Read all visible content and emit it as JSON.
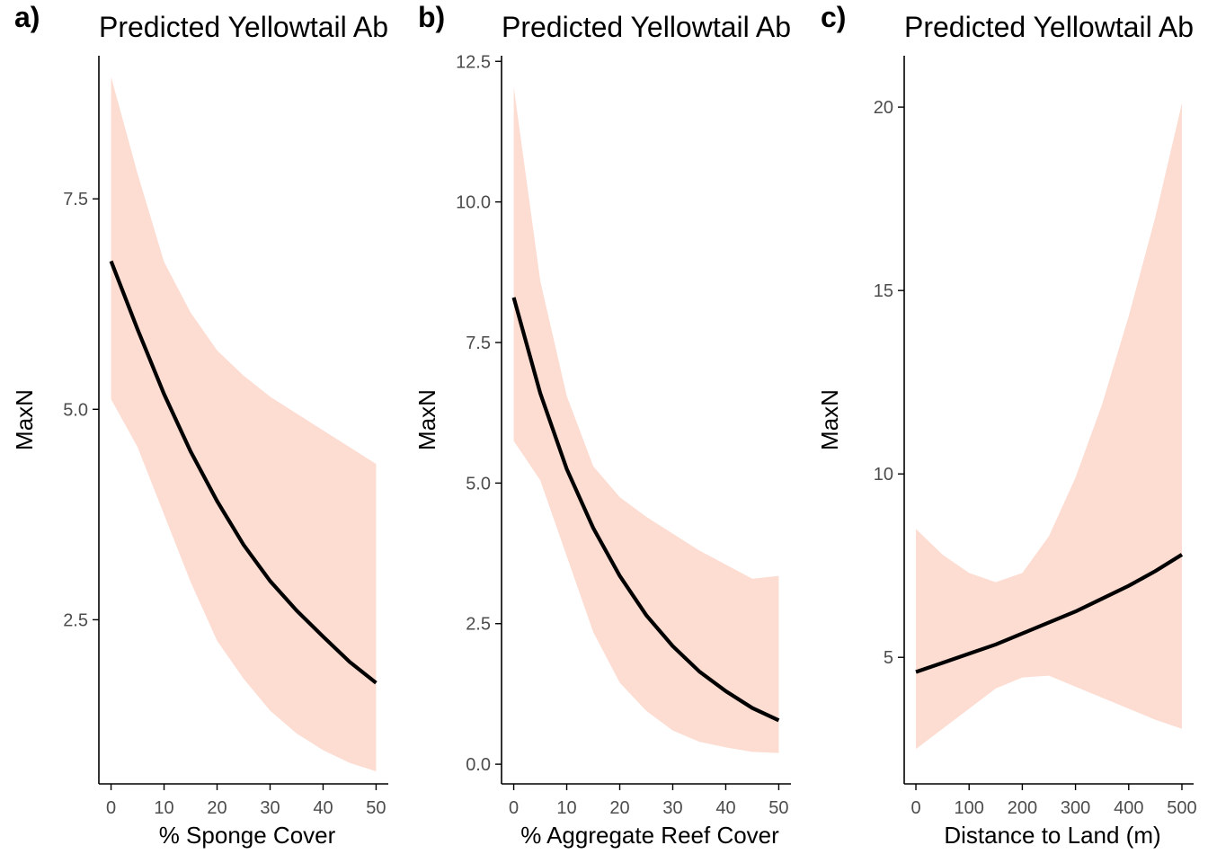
{
  "colors": {
    "ribbon": "#fddcd2",
    "line": "#000000",
    "axis": "#000000",
    "tick_text": "#4d4d4d"
  },
  "chart_data": [
    {
      "type": "line",
      "tag": "a)",
      "title": "Predicted Yellowtail Ab",
      "xlabel": "% Sponge Cover",
      "ylabel": "MaxN",
      "xlim": [
        -2.3,
        52.3
      ],
      "ylim": [
        0.55,
        9.2
      ],
      "x_ticks": [
        0,
        10,
        20,
        30,
        40,
        50
      ],
      "x_tick_labels": [
        "0",
        "10",
        "20",
        "30",
        "40",
        "50"
      ],
      "y_ticks": [
        2.5,
        5.0,
        7.5
      ],
      "y_tick_labels": [
        "2.5",
        "5.0",
        "7.5"
      ],
      "series": [
        {
          "x": [
            0,
            5,
            10,
            15,
            20,
            25,
            30,
            35,
            40,
            45,
            50
          ],
          "y": [
            6.76,
            5.95,
            5.18,
            4.5,
            3.91,
            3.39,
            2.96,
            2.61,
            2.3,
            2.0,
            1.75
          ],
          "lower": [
            5.12,
            4.55,
            3.75,
            2.95,
            2.25,
            1.8,
            1.42,
            1.15,
            0.95,
            0.8,
            0.7
          ],
          "upper": [
            8.95,
            7.8,
            6.75,
            6.15,
            5.7,
            5.4,
            5.15,
            4.95,
            4.75,
            4.55,
            4.35
          ]
        }
      ]
    },
    {
      "type": "line",
      "tag": "b)",
      "title": "Predicted Yellowtail Ab",
      "xlabel": "% Aggregate Reef Cover",
      "ylabel": "MaxN",
      "xlim": [
        -2.3,
        52.3
      ],
      "ylim": [
        -0.35,
        12.6
      ],
      "x_ticks": [
        0,
        10,
        20,
        30,
        40,
        50
      ],
      "x_tick_labels": [
        "0",
        "10",
        "20",
        "30",
        "40",
        "50"
      ],
      "y_ticks": [
        0.0,
        2.5,
        5.0,
        7.5,
        10.0,
        12.5
      ],
      "y_tick_labels": [
        "0.0",
        "2.5",
        "5.0",
        "7.5",
        "10.0",
        "12.5"
      ],
      "series": [
        {
          "x": [
            0,
            5,
            10,
            15,
            20,
            25,
            30,
            35,
            40,
            45,
            50
          ],
          "y": [
            8.3,
            6.6,
            5.25,
            4.2,
            3.35,
            2.65,
            2.1,
            1.65,
            1.3,
            1.0,
            0.78
          ],
          "lower": [
            5.75,
            5.05,
            3.7,
            2.35,
            1.45,
            0.95,
            0.6,
            0.4,
            0.3,
            0.22,
            0.2
          ],
          "upper": [
            12.05,
            8.6,
            6.55,
            5.3,
            4.75,
            4.4,
            4.1,
            3.8,
            3.55,
            3.3,
            3.35
          ]
        }
      ]
    },
    {
      "type": "line",
      "tag": "c)",
      "title": "Predicted Yellowtail Ab",
      "xlabel": "Distance to Land (m)",
      "ylabel": "MaxN",
      "xlim": [
        -22,
        522
      ],
      "ylim": [
        1.55,
        21.4
      ],
      "x_ticks": [
        0,
        100,
        200,
        300,
        400,
        500
      ],
      "x_tick_labels": [
        "0",
        "100",
        "200",
        "300",
        "400",
        "500"
      ],
      "y_ticks": [
        5,
        10,
        15,
        20
      ],
      "y_tick_labels": [
        "5",
        "10",
        "15",
        "20"
      ],
      "series": [
        {
          "x": [
            0,
            50,
            100,
            150,
            200,
            250,
            300,
            350,
            400,
            450,
            500
          ],
          "y": [
            4.6,
            4.85,
            5.1,
            5.35,
            5.65,
            5.95,
            6.25,
            6.6,
            6.95,
            7.35,
            7.8
          ],
          "lower": [
            2.5,
            3.05,
            3.6,
            4.15,
            4.45,
            4.5,
            4.2,
            3.9,
            3.6,
            3.3,
            3.05
          ],
          "upper": [
            8.5,
            7.8,
            7.3,
            7.05,
            7.3,
            8.3,
            9.9,
            11.9,
            14.3,
            17.0,
            20.1
          ]
        }
      ]
    }
  ]
}
